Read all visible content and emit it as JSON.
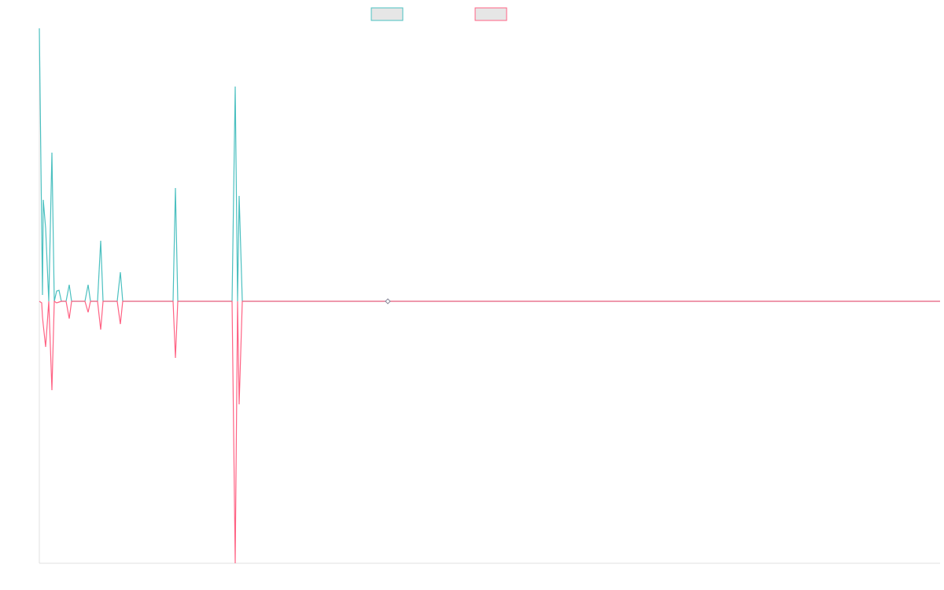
{
  "chart_data": {
    "type": "line",
    "legend": "top",
    "grid": false,
    "x": [
      0,
      3,
      4,
      5,
      8,
      12,
      16,
      19,
      22,
      25,
      28,
      34,
      38,
      41,
      58,
      62,
      65,
      74,
      78,
      81,
      99,
      103,
      106,
      170,
      173,
      176,
      245,
      249,
      252,
      254,
      258,
      443,
      1145
    ],
    "xlim": [
      0,
      1145
    ],
    "ylim": [
      -333,
      347
    ],
    "series": [
      {
        "color": "#4bc0c0",
        "values": [
          347,
          90,
          8,
          129,
          93,
          0,
          189,
          0,
          13,
          14,
          0,
          0,
          21,
          0,
          0,
          21,
          0,
          0,
          77,
          0,
          0,
          37,
          0,
          0,
          144,
          0,
          0,
          273,
          0,
          134,
          0,
          0,
          0
        ]
      },
      {
        "color": "#ff6384",
        "values": [
          0,
          -2,
          -20,
          -30,
          -58,
          0,
          -113,
          0,
          -2,
          -1,
          0,
          0,
          -22,
          0,
          0,
          -14,
          0,
          0,
          -36,
          0,
          0,
          -29,
          0,
          0,
          -72,
          0,
          0,
          -333,
          0,
          -131,
          0,
          0,
          0
        ]
      }
    ]
  }
}
